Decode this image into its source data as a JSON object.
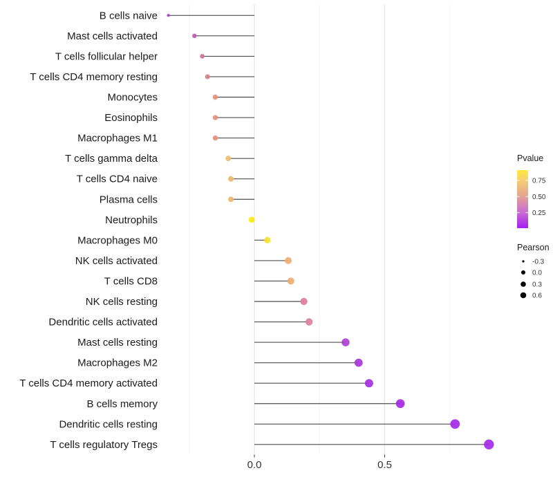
{
  "chart_data": {
    "type": "lollipop",
    "title": "",
    "xlabel": "",
    "ylabel": "",
    "x_tick_labels": [
      "0.0",
      "0.5"
    ],
    "x_tick_values": [
      0,
      0.5
    ],
    "xlim": [
      -0.39,
      0.97
    ],
    "grid_minor_values": [
      -0.25,
      0.25,
      0.75
    ],
    "grid_major_values": [
      0,
      0.5
    ],
    "categories": [
      "B cells naive",
      "Mast cells activated",
      "T cells follicular helper",
      "T cells CD4 memory resting",
      "Monocytes",
      "Eosinophils",
      "Macrophages M1",
      "T cells gamma delta",
      "T cells CD4 naive",
      "Plasma cells",
      "Neutrophils",
      "Macrophages M0",
      "NK cells activated",
      "T cells CD8",
      "NK cells resting",
      "Dendritic cells activated",
      "Mast cells resting",
      "Macrophages M2",
      "T cells CD4 memory activated",
      "B cells memory",
      "Dendritic cells resting",
      "T cells regulatory  Tregs"
    ],
    "series": [
      {
        "name": "Pearson",
        "values": [
          -0.33,
          -0.23,
          -0.2,
          -0.18,
          -0.15,
          -0.15,
          -0.15,
          -0.1,
          -0.09,
          -0.09,
          -0.01,
          0.05,
          0.13,
          0.14,
          0.19,
          0.21,
          0.35,
          0.4,
          0.44,
          0.56,
          0.77,
          0.9
        ]
      },
      {
        "name": "Pvalue (estimated from color)",
        "values": [
          0.15,
          0.3,
          0.4,
          0.47,
          0.55,
          0.55,
          0.55,
          0.72,
          0.7,
          0.7,
          0.91,
          0.88,
          0.65,
          0.65,
          0.42,
          0.4,
          0.18,
          0.14,
          0.1,
          0.06,
          0.03,
          0.02
        ]
      }
    ],
    "point_colors": [
      "#A33CC6",
      "#C457AC",
      "#D56F97",
      "#D87E88",
      "#E29378",
      "#E29378",
      "#E09276",
      "#ECBE69",
      "#EBB969",
      "#EBB969",
      "#F8EC15",
      "#F5E32B",
      "#EDAC74",
      "#EDAC74",
      "#DD7F9E",
      "#DB7FA2",
      "#AC3FD4",
      "#A835DC",
      "#A52FDF",
      "#A428E4",
      "#A32BE8",
      "#A52BE8"
    ],
    "stem_color": "#2e2e2e",
    "legend": {
      "color": {
        "title": "Pvalue",
        "tick_labels": [
          "0.75",
          "0.50",
          "0.25"
        ],
        "tick_values": [
          0.75,
          0.5,
          0.25
        ],
        "range": [
          0.01,
          0.91
        ],
        "gradient_top_to_bottom": [
          "#FBEA3E",
          "#F4CE73",
          "#E1A294",
          "#C86CD4",
          "#A31EF0"
        ]
      },
      "size": {
        "title": "Pearson",
        "labels": [
          "-0.3",
          "0.0",
          "0.3",
          "0.6"
        ],
        "values": [
          -0.3,
          0.0,
          0.3,
          0.6
        ],
        "dot_color": "#000000"
      }
    }
  }
}
